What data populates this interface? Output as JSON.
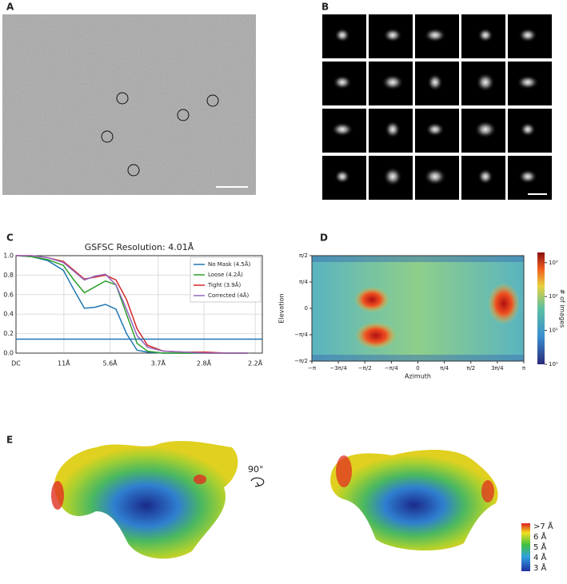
{
  "panels": {
    "a": "A",
    "b": "B",
    "c": "C",
    "d": "D",
    "e": "E"
  },
  "chart_data": [
    {
      "type": "line",
      "title": "GSFSC Resolution: 4.01Å",
      "x": [
        0,
        0.03,
        0.06,
        0.09,
        0.11,
        0.13,
        0.15,
        0.17,
        0.19,
        0.21,
        0.23,
        0.25,
        0.28,
        0.32,
        0.36,
        0.4,
        0.44
      ],
      "series": [
        {
          "name": "No Mask (4.5Å)",
          "color": "#1f77b4",
          "values": [
            1,
            0.99,
            0.95,
            0.85,
            0.65,
            0.46,
            0.47,
            0.5,
            0.45,
            0.2,
            0.03,
            0.01,
            0,
            0,
            0,
            0,
            0
          ]
        },
        {
          "name": "Loose (4.2Å)",
          "color": "#2ca02c",
          "values": [
            1,
            0.99,
            0.96,
            0.9,
            0.75,
            0.62,
            0.68,
            0.74,
            0.7,
            0.4,
            0.1,
            0.02,
            0,
            0,
            0,
            0,
            0
          ]
        },
        {
          "name": "Tight (3.9Å)",
          "color": "#d62728",
          "values": [
            1,
            1,
            0.98,
            0.94,
            0.85,
            0.76,
            0.78,
            0.8,
            0.75,
            0.55,
            0.25,
            0.08,
            0.02,
            0.01,
            0.01,
            0,
            0
          ]
        },
        {
          "name": "Corrected (4Å)",
          "color": "#9467bd",
          "values": [
            1,
            1,
            0.98,
            0.93,
            0.84,
            0.75,
            0.79,
            0.81,
            0.7,
            0.45,
            0.18,
            0.06,
            0.02,
            0.01,
            0,
            0,
            0
          ]
        }
      ],
      "threshold": 0.143,
      "threshold_color": "#1f77b4",
      "xlim": [
        0,
        0.468
      ],
      "ylim": [
        0,
        1
      ],
      "xticks": [
        {
          "value": 0,
          "label": "DC"
        },
        {
          "value": 0.0909,
          "label": "11Å"
        },
        {
          "value": 0.1786,
          "label": "5.6Å"
        },
        {
          "value": 0.2703,
          "label": "3.7Å"
        },
        {
          "value": 0.3571,
          "label": "2.8Å"
        },
        {
          "value": 0.4545,
          "label": "2.2Å"
        }
      ],
      "yticks": [
        {
          "value": 0,
          "label": "0.0"
        },
        0.2,
        0.4,
        0.6,
        0.8,
        {
          "value": 1,
          "label": "1.0"
        }
      ],
      "grid": true
    },
    {
      "type": "heatmap",
      "x_label": "Azimuth",
      "y_label": "Elevation",
      "colorbar_label": "# of images",
      "xlim": [
        -3.1416,
        3.1416
      ],
      "ylim": [
        -1.5708,
        1.5708
      ],
      "xticks": [
        {
          "value": -3.1416,
          "label": "−π"
        },
        {
          "value": -2.3562,
          "label": "−3π/4"
        },
        {
          "value": -1.5708,
          "label": "−π/2"
        },
        {
          "value": -0.7854,
          "label": "−π/4"
        },
        0,
        {
          "value": 0.7854,
          "label": "π/4"
        },
        {
          "value": 1.5708,
          "label": "π/2"
        },
        {
          "value": 2.3562,
          "label": "3π/4"
        },
        {
          "value": 3.1416,
          "label": "π"
        }
      ],
      "yticks": [
        {
          "value": -1.5708,
          "label": "−π/2"
        },
        {
          "value": -0.7854,
          "label": "−π/4"
        },
        0,
        {
          "value": 0.7854,
          "label": "π/4"
        },
        {
          "value": 1.5708,
          "label": "π/2"
        }
      ],
      "color_log": true,
      "color_lim": [
        1,
        2000
      ],
      "color_ticks": [
        {
          "value": 1,
          "label": "10⁰"
        },
        {
          "value": 10,
          "label": "10¹"
        },
        {
          "value": 100,
          "label": "10²"
        },
        {
          "value": 1000,
          "label": "10³"
        }
      ]
    }
  ],
  "panel_e": {
    "rotation": "90°",
    "colorbar_labels": [
      "&gt;7 Å",
      "6 Å",
      "5 Å",
      "4 Å",
      "3 Å"
    ]
  }
}
